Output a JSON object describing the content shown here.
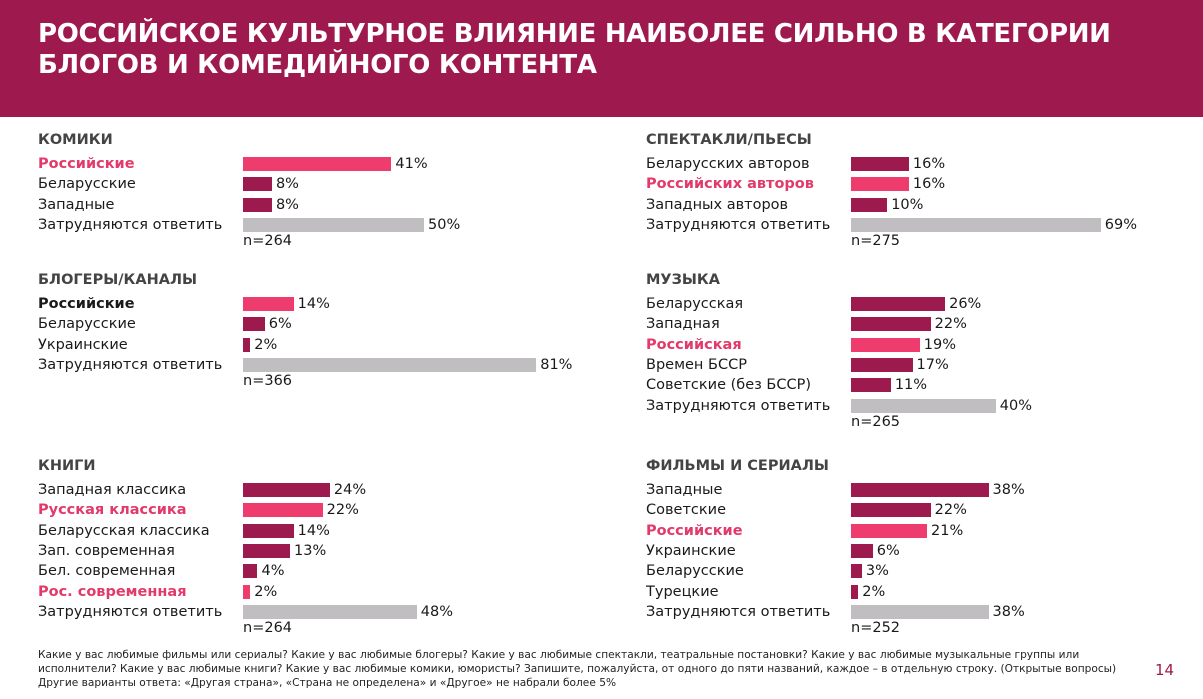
{
  "header": {
    "title": "РОССИЙСКОЕ КУЛЬТУРНОЕ ВЛИЯНИЕ НАИБОЛЕЕ СИЛЬНО В КАТЕГОРИИ БЛОГОВ И КОМЕДИЙНОГО КОНТЕНТА"
  },
  "colors": {
    "header": "#9e1a4e",
    "russian": "#ef3c6e",
    "other": "#9c1a4e",
    "unsure": "#c1bec1"
  },
  "chart_data": [
    {
      "type": "bar",
      "title": "КОМИКИ",
      "n": "n=264",
      "categories": [
        "Российские",
        "Беларусские",
        "Западные",
        "Затрудняются ответить"
      ],
      "values": [
        41,
        8,
        8,
        50
      ],
      "kinds": [
        "russian",
        "other",
        "other",
        "unsure"
      ]
    },
    {
      "type": "bar",
      "title": "БЛОГЕРЫ/КАНАЛЫ",
      "n": "n=366",
      "categories": [
        "Российские",
        "Беларусские",
        "Украинские",
        "Затрудняются ответить"
      ],
      "values": [
        14,
        6,
        2,
        81
      ],
      "kinds": [
        "russian-black",
        "other",
        "other",
        "unsure"
      ]
    },
    {
      "type": "bar",
      "title": "КНИГИ",
      "n": "n=264",
      "categories": [
        "Западная классика",
        "Русская классика",
        "Беларусская классика",
        "Зап. современная",
        "Бел. современная",
        "Рос. современная",
        "Затрудняются ответить"
      ],
      "values": [
        24,
        22,
        14,
        13,
        4,
        2,
        48
      ],
      "kinds": [
        "other",
        "russian",
        "other",
        "other",
        "other",
        "russian",
        "unsure"
      ]
    },
    {
      "type": "bar",
      "title": "СПЕКТАКЛИ/ПЬЕСЫ",
      "n": "n=275",
      "categories": [
        "Беларусских авторов",
        "Российских авторов",
        "Западных авторов",
        "Затрудняются ответить"
      ],
      "values": [
        16,
        16,
        10,
        69
      ],
      "kinds": [
        "other",
        "russian",
        "other",
        "unsure"
      ]
    },
    {
      "type": "bar",
      "title": "МУЗЫКА",
      "n": "n=265",
      "categories": [
        "Беларусская",
        "Западная",
        "Российская",
        "Времен БССР",
        "Советские (без БССР)",
        "Затрудняются ответить"
      ],
      "values": [
        26,
        22,
        19,
        17,
        11,
        40
      ],
      "kinds": [
        "other",
        "other",
        "russian",
        "other",
        "other",
        "unsure"
      ]
    },
    {
      "type": "bar",
      "title": "ФИЛЬМЫ И СЕРИАЛЫ",
      "n": "n=252",
      "categories": [
        "Западные",
        "Советские",
        "Российские",
        "Украинские",
        "Беларусские",
        "Турецкие",
        "Затрудняются ответить"
      ],
      "values": [
        38,
        22,
        21,
        6,
        3,
        2,
        38
      ],
      "kinds": [
        "other",
        "other",
        "russian",
        "other",
        "other",
        "other",
        "unsure"
      ]
    }
  ],
  "footer": {
    "note": "Какие у вас любимые фильмы или сериалы? Какие у вас любимые блогеры? Какие у вас любимые спектакли, театральные постановки? Какие у вас любимые музыкальные группы или исполнители? Какие у вас любимые книги? Какие у вас любимые комики, юмористы? Запишите, пожалуйста, от одного до пяти названий, каждое – в отдельную строку. (Открытые вопросы) Другие варианты ответа:  «Другая страна», «Страна не определена» и «Другое» не набрали более 5%",
    "page": "14"
  }
}
